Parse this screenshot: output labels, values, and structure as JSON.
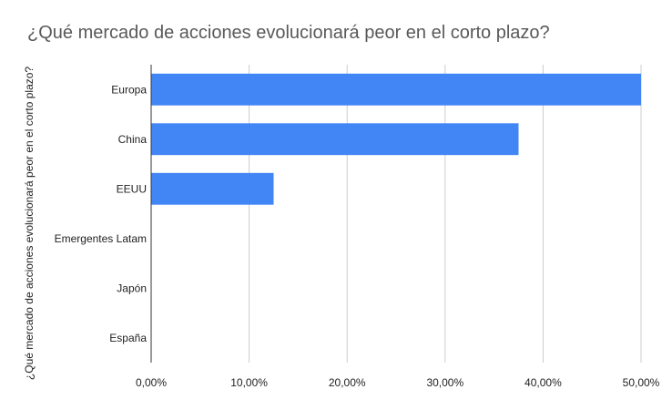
{
  "chart_data": {
    "type": "bar",
    "orientation": "horizontal",
    "title": "¿Qué mercado de acciones evolucionará peor en el corto plazo?",
    "xlabel": "",
    "ylabel": "¿Qué mercado de acciones evolucionará peor en el corto plazo?",
    "categories": [
      "Europa",
      "China",
      "EEUU",
      "Emergentes Latam",
      "Japón",
      "España"
    ],
    "values": [
      50.0,
      37.5,
      12.5,
      0,
      0,
      0
    ],
    "xlim": [
      0,
      50
    ],
    "x_ticks": [
      0,
      10,
      20,
      30,
      40,
      50
    ],
    "x_tick_labels": [
      "0,00%",
      "10,00%",
      "20,00%",
      "30,00%",
      "40,00%",
      "50,00%"
    ],
    "bar_color": "#4285f4",
    "grid": true,
    "legend": "none"
  }
}
